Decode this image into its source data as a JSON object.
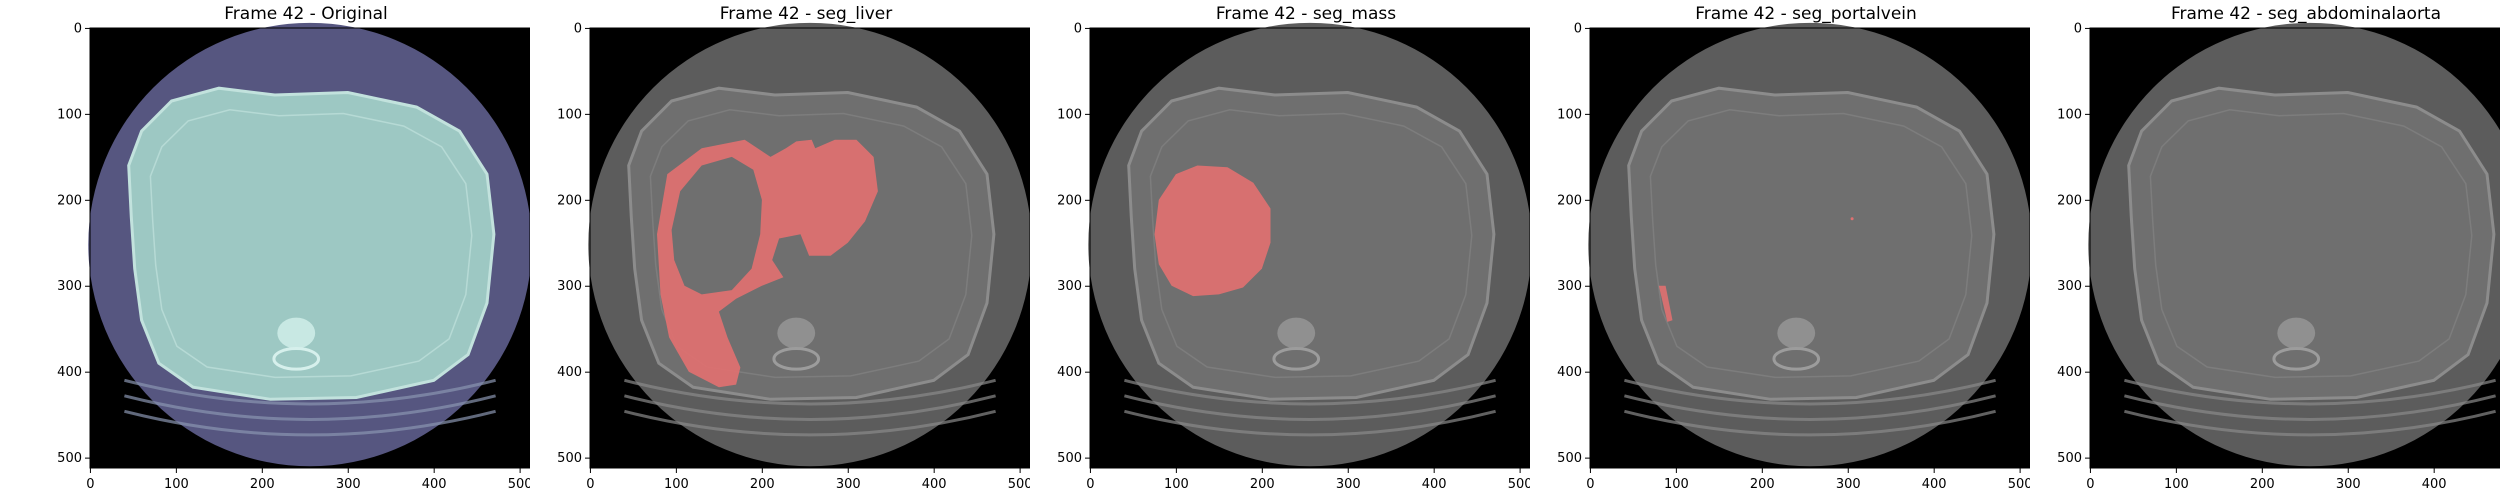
{
  "figure": {
    "panels": [
      {
        "title": "Frame 42 - Original",
        "mask": "none",
        "tint": "original"
      },
      {
        "title": "Frame 42 - seg_liver",
        "mask": "liver",
        "tint": "gray"
      },
      {
        "title": "Frame 42 - seg_mass",
        "mask": "mass",
        "tint": "gray"
      },
      {
        "title": "Frame 42 - seg_portalvein",
        "mask": "portalvein",
        "tint": "gray"
      },
      {
        "title": "Frame 42 - seg_abdominalaorta",
        "mask": "none",
        "tint": "gray"
      }
    ],
    "x_ticks": [
      "0",
      "100",
      "200",
      "300",
      "400",
      "500"
    ],
    "y_ticks": [
      "0",
      "100",
      "200",
      "300",
      "400",
      "500"
    ],
    "image_size": 512,
    "colors": {
      "mask": "#e07070",
      "original_bg": "#565680",
      "original_body": "#9dc8c3",
      "gray_bg": "#5c5c5c",
      "gray_body": "#6f6f6f"
    }
  }
}
